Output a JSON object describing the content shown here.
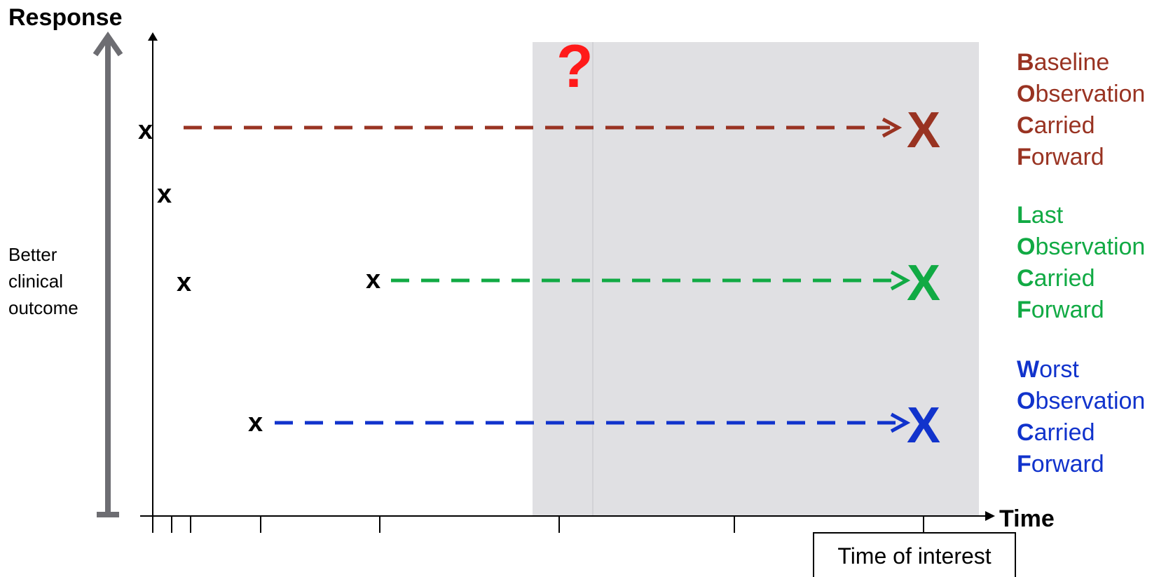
{
  "axes": {
    "y_title": "Response",
    "x_title": "Time",
    "y_side_label": [
      "Better",
      "clinical",
      "outcome"
    ],
    "time_of_interest_label": "Time of interest"
  },
  "question_mark": {
    "text": "?",
    "color": "#ff1a1a"
  },
  "observation_marker": "x",
  "imputed_marker": "X",
  "missing_region_color": "#e0e0e3",
  "methods": [
    {
      "id": "boc",
      "color": "#993322",
      "words": [
        [
          "B",
          "aseline"
        ],
        [
          "O",
          "bservation"
        ],
        [
          "C",
          "arried"
        ],
        [
          "F",
          "orward"
        ]
      ]
    },
    {
      "id": "loc",
      "color": "#11aa44",
      "words": [
        [
          "L",
          "ast"
        ],
        [
          "O",
          "bservation"
        ],
        [
          "C",
          "arried"
        ],
        [
          "F",
          "orward"
        ]
      ]
    },
    {
      "id": "woc",
      "color": "#1133cc",
      "words": [
        [
          "W",
          "orst"
        ],
        [
          "O",
          "bservation"
        ],
        [
          "C",
          "arried"
        ],
        [
          "F",
          "orward"
        ]
      ]
    }
  ]
}
